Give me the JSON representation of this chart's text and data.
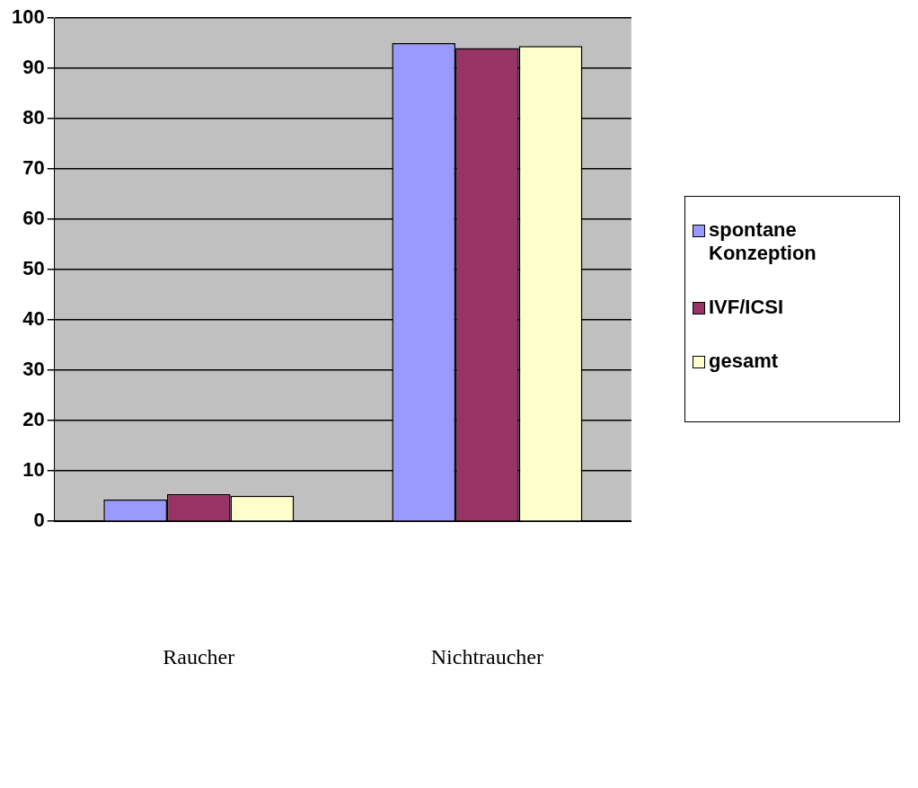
{
  "chart_data": {
    "type": "bar",
    "categories": [
      "Raucher",
      "Nichtraucher"
    ],
    "series": [
      {
        "name": "spontane Konzeption",
        "color": "#9999ff",
        "values": [
          4.3,
          95
        ]
      },
      {
        "name": "IVF/ICSI",
        "color": "#993366",
        "values": [
          5.4,
          94
        ]
      },
      {
        "name": "gesamt",
        "color": "#ffffcc",
        "values": [
          5.1,
          94.4
        ]
      }
    ],
    "ylim": [
      0,
      100
    ],
    "yticks": [
      0,
      10,
      20,
      30,
      40,
      50,
      60,
      70,
      80,
      90,
      100
    ],
    "grid": "y",
    "legend": "right"
  }
}
